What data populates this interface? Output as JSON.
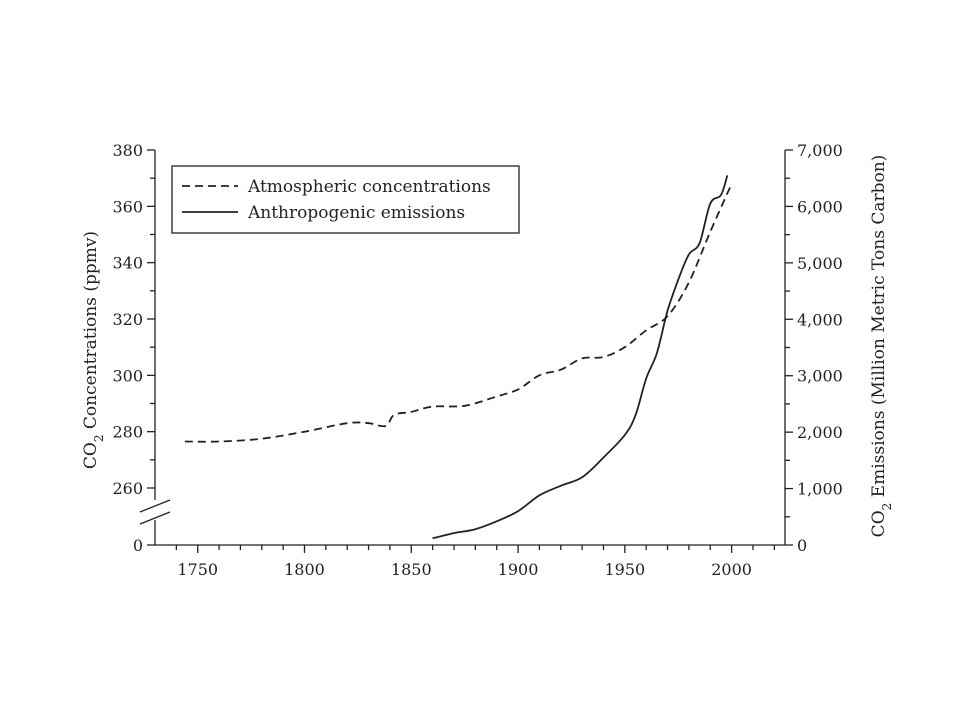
{
  "chart_data": {
    "type": "line",
    "x_ticks": [
      "1750",
      "1800",
      "1850",
      "1900",
      "1950",
      "2000"
    ],
    "x_tick_values": [
      1750,
      1800,
      1850,
      1900,
      1950,
      2000
    ],
    "xlim": [
      1730,
      2025
    ],
    "y_left_ticks": [
      "0",
      "260",
      "280",
      "300",
      "320",
      "340",
      "360",
      "380"
    ],
    "y_left_break": true,
    "y_left_range": [
      260,
      380
    ],
    "y_right_ticks": [
      "0",
      "1,000",
      "2,000",
      "3,000",
      "4,000",
      "5,000",
      "6,000",
      "7,000"
    ],
    "y_right_tick_values": [
      0,
      1000,
      2000,
      3000,
      4000,
      5000,
      6000,
      7000
    ],
    "y_right_range": [
      0,
      7000
    ],
    "ylabel_left_main": "CO",
    "ylabel_left_sub": "2",
    "ylabel_left_rest": " Concentrations (ppmv)",
    "ylabel_right_main": "CO",
    "ylabel_right_sub": "2",
    "ylabel_right_rest": " Emissions (Million Metric Tons Carbon)",
    "legend_position": "top-left",
    "series": [
      {
        "name": "Atmospheric concentrations",
        "style": "dashed",
        "axis": "left",
        "x": [
          1744,
          1760,
          1780,
          1800,
          1820,
          1830,
          1838,
          1842,
          1850,
          1860,
          1875,
          1890,
          1900,
          1910,
          1920,
          1930,
          1940,
          1950,
          1960,
          1970,
          1980,
          1990,
          2000
        ],
        "values": [
          276.5,
          276.5,
          277.5,
          280,
          283,
          283,
          282,
          286,
          287,
          288.9,
          289.2,
          292.5,
          295,
          300,
          302,
          306,
          306.5,
          310,
          316,
          321,
          333,
          351,
          368
        ]
      },
      {
        "name": "Anthropogenic emissions",
        "style": "solid",
        "axis": "right",
        "x": [
          1860,
          1870,
          1880,
          1890,
          1900,
          1910,
          1920,
          1930,
          1940,
          1950,
          1955,
          1960,
          1965,
          1970,
          1975,
          1980,
          1985,
          1990,
          1995,
          1998
        ],
        "values": [
          120,
          210,
          280,
          420,
          600,
          880,
          1050,
          1200,
          1550,
          1950,
          2300,
          2950,
          3400,
          4150,
          4700,
          5150,
          5350,
          6050,
          6200,
          6550
        ]
      }
    ]
  }
}
